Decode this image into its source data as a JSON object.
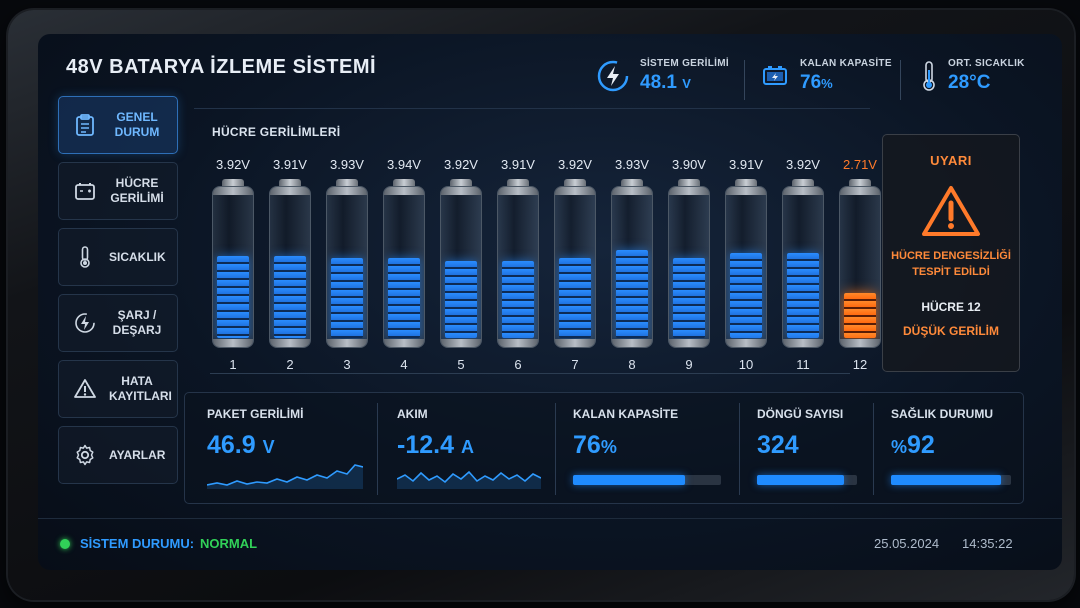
{
  "header": {
    "title": "48V BATARYA İZLEME SİSTEMİ",
    "system_voltage": {
      "label": "SİSTEM GERİLİMİ",
      "value": "48.1",
      "unit": "V"
    },
    "remaining_capacity": {
      "label": "KALAN KAPASİTE",
      "value": "76",
      "unit": "%"
    },
    "avg_temperature": {
      "label": "ORT. SICAKLIK",
      "value": "28°C"
    }
  },
  "sidebar": {
    "items": [
      {
        "label": "GENEL DURUM",
        "icon": "clipboard-icon",
        "active": true
      },
      {
        "label": "HÜCRE GERİLİMİ",
        "icon": "battery-cell-icon",
        "active": false
      },
      {
        "label": "SICAKLIK",
        "icon": "thermometer-icon",
        "active": false
      },
      {
        "label": "ŞARJ / DEŞARJ",
        "icon": "charge-bolt-icon",
        "active": false
      },
      {
        "label": "HATA KAYITLARI",
        "icon": "warning-icon",
        "active": false
      },
      {
        "label": "AYARLAR",
        "icon": "gear-icon",
        "active": false
      }
    ]
  },
  "cells": {
    "title": "HÜCRE GERİLİMLERİ",
    "items": [
      {
        "num": "1",
        "voltage": "3.92V",
        "level": 0.58,
        "warn": false
      },
      {
        "num": "2",
        "voltage": "3.91V",
        "level": 0.58,
        "warn": false
      },
      {
        "num": "3",
        "voltage": "3.93V",
        "level": 0.56,
        "warn": false
      },
      {
        "num": "4",
        "voltage": "3.94V",
        "level": 0.56,
        "warn": false
      },
      {
        "num": "5",
        "voltage": "3.92V",
        "level": 0.54,
        "warn": false
      },
      {
        "num": "6",
        "voltage": "3.91V",
        "level": 0.54,
        "warn": false
      },
      {
        "num": "7",
        "voltage": "3.92V",
        "level": 0.56,
        "warn": false
      },
      {
        "num": "8",
        "voltage": "3.93V",
        "level": 0.62,
        "warn": false
      },
      {
        "num": "9",
        "voltage": "3.90V",
        "level": 0.56,
        "warn": false
      },
      {
        "num": "10",
        "voltage": "3.91V",
        "level": 0.6,
        "warn": false
      },
      {
        "num": "11",
        "voltage": "3.92V",
        "level": 0.6,
        "warn": false
      },
      {
        "num": "12",
        "voltage": "2.71V",
        "level": 0.32,
        "warn": true
      }
    ]
  },
  "warning": {
    "title": "UYARI",
    "message": "HÜCRE DENGESİZLİĞİ TESPİT EDİLDİ",
    "cell": "HÜCRE 12",
    "detail": "DÜŞÜK GERİLİM"
  },
  "metrics": {
    "pack_voltage": {
      "label": "PAKET GERİLİMİ",
      "value": "46.9",
      "unit": "V"
    },
    "current": {
      "label": "AKIM",
      "value": "-12.4",
      "unit": "A"
    },
    "capacity": {
      "label": "KALAN KAPASİTE",
      "value": "76",
      "unit": "%",
      "level": 0.76
    },
    "cycles": {
      "label": "DÖNGÜ SAYISI",
      "value": "324",
      "level": 0.87
    },
    "health": {
      "label": "SAĞLIK DURUMU",
      "prefix": "%",
      "value": "92",
      "level": 0.92
    }
  },
  "footer": {
    "status_label": "SİSTEM DURUMU:",
    "status_value": "NORMAL",
    "date": "25.05.2024",
    "time": "14:35:22"
  },
  "colors": {
    "accent": "#2f9bff",
    "warning": "#ff8a3a",
    "ok": "#31d158"
  }
}
